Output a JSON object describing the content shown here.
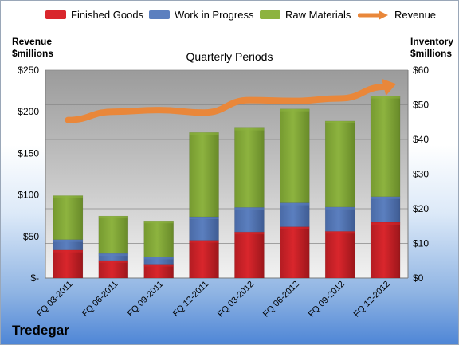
{
  "legend": {
    "finished": "Finished Goods",
    "wip": "Work in Progress",
    "raw": "Raw Materials",
    "revenue": "Revenue"
  },
  "left_axis_title": [
    "Revenue",
    "$millions"
  ],
  "right_axis_title": [
    "Inventory",
    "$millions"
  ],
  "plot_title": "Quarterly Periods",
  "company": "Tredegar",
  "colors": {
    "finished": "#d9262c",
    "wip": "#5b7fbf",
    "raw": "#8db33f",
    "revenue": "#e9873a"
  },
  "chart_data": {
    "type": "bar",
    "stacked": true,
    "categories": [
      "FQ 03-2011",
      "FQ 06-2011",
      "FQ 09-2011",
      "FQ 12-2011",
      "FQ 03-2012",
      "FQ 06-2012",
      "FQ 09-2012",
      "FQ 12-2012"
    ],
    "series": [
      {
        "name": "Finished Goods",
        "axis": "right",
        "values": [
          8.1,
          5.1,
          4.0,
          10.9,
          13.3,
          14.8,
          13.5,
          16.1
        ]
      },
      {
        "name": "Work in Progress",
        "axis": "right",
        "values": [
          3.0,
          2.0,
          2.1,
          6.8,
          7.1,
          6.9,
          7.0,
          7.4
        ]
      },
      {
        "name": "Raw Materials",
        "axis": "right",
        "values": [
          12.7,
          10.8,
          10.4,
          24.3,
          22.9,
          27.1,
          24.8,
          29.0
        ]
      },
      {
        "name": "Revenue",
        "type": "line",
        "axis": "left",
        "values": [
          190,
          200,
          202,
          199,
          214,
          213,
          216,
          230
        ]
      }
    ],
    "left_axis": {
      "ylim": [
        0,
        250
      ],
      "ticks": [
        "$-",
        "$50",
        "$100",
        "$150",
        "$200",
        "$250"
      ]
    },
    "right_axis": {
      "ylim": [
        0,
        60
      ],
      "ticks": [
        "$0",
        "$10",
        "$20",
        "$30",
        "$40",
        "$50",
        "$60"
      ]
    },
    "grid": true,
    "legend_position": "top"
  }
}
